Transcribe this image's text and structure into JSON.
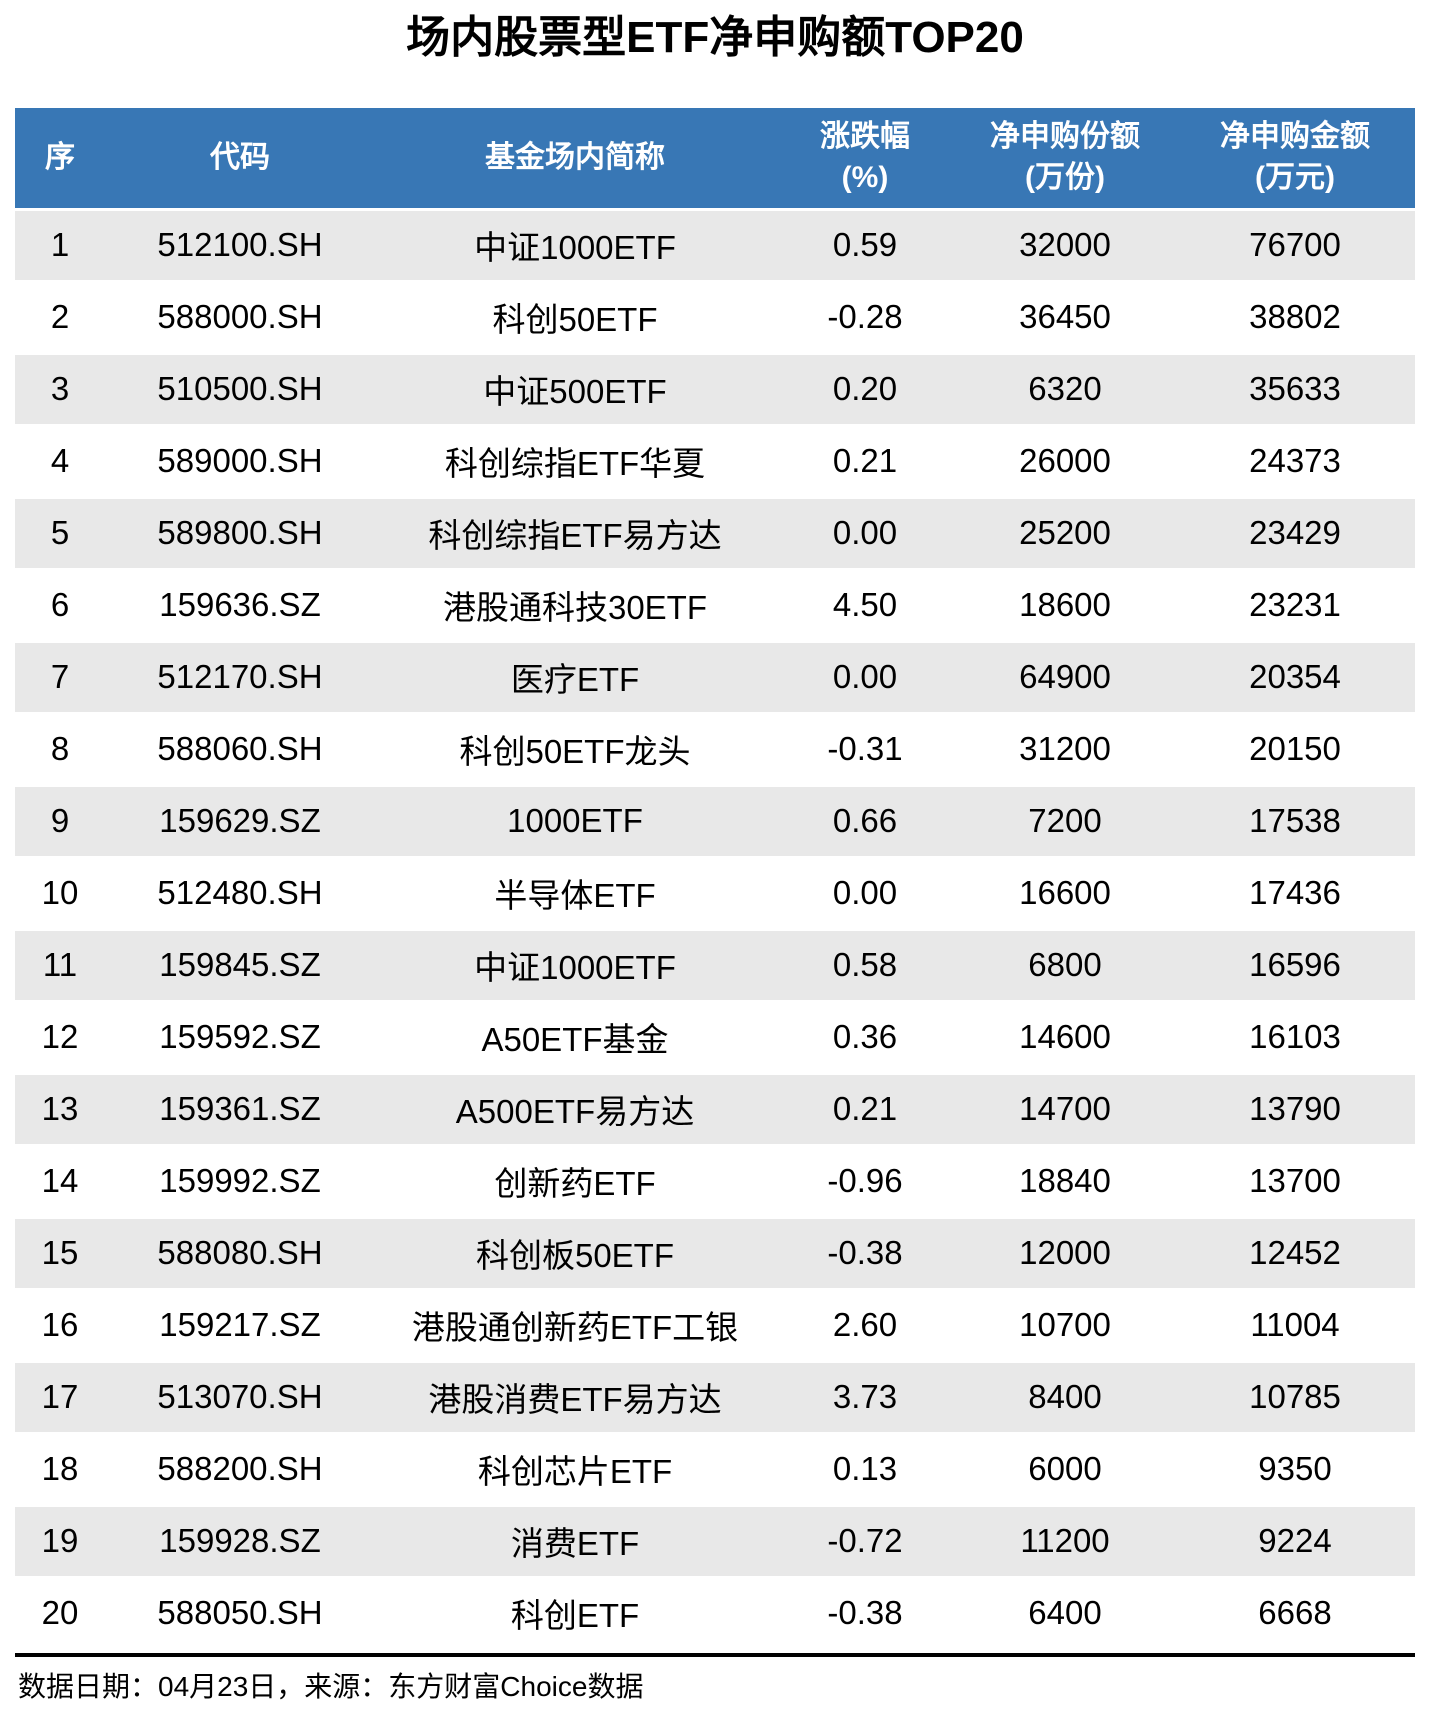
{
  "page": {
    "title": "场内股票型ETF净申购额TOP20",
    "footer_note": "数据日期：04月23日，来源：东方财富Choice数据"
  },
  "colors": {
    "header_background": "#3877B5",
    "header_text": "#FFFFFF",
    "stripe_background": "#E8E8E8",
    "body_text": "#000000",
    "divider": "#000000"
  },
  "chart_data": {
    "type": "table",
    "title": "场内股票型ETF净申购额TOP20",
    "columns": [
      {
        "label": "序",
        "unit": ""
      },
      {
        "label": "代码",
        "unit": ""
      },
      {
        "label": "基金场内简称",
        "unit": ""
      },
      {
        "label": "涨跌幅",
        "unit": "(%)"
      },
      {
        "label": "净申购份额",
        "unit": "(万份)"
      },
      {
        "label": "净申购金额",
        "unit": "(万元)"
      }
    ],
    "rows": [
      [
        "1",
        "512100.SH",
        "中证1000ETF",
        "0.59",
        "32000",
        "76700"
      ],
      [
        "2",
        "588000.SH",
        "科创50ETF",
        "-0.28",
        "36450",
        "38802"
      ],
      [
        "3",
        "510500.SH",
        "中证500ETF",
        "0.20",
        "6320",
        "35633"
      ],
      [
        "4",
        "589000.SH",
        "科创综指ETF华夏",
        "0.21",
        "26000",
        "24373"
      ],
      [
        "5",
        "589800.SH",
        "科创综指ETF易方达",
        "0.00",
        "25200",
        "23429"
      ],
      [
        "6",
        "159636.SZ",
        "港股通科技30ETF",
        "4.50",
        "18600",
        "23231"
      ],
      [
        "7",
        "512170.SH",
        "医疗ETF",
        "0.00",
        "64900",
        "20354"
      ],
      [
        "8",
        "588060.SH",
        "科创50ETF龙头",
        "-0.31",
        "31200",
        "20150"
      ],
      [
        "9",
        "159629.SZ",
        "1000ETF",
        "0.66",
        "7200",
        "17538"
      ],
      [
        "10",
        "512480.SH",
        "半导体ETF",
        "0.00",
        "16600",
        "17436"
      ],
      [
        "11",
        "159845.SZ",
        "中证1000ETF",
        "0.58",
        "6800",
        "16596"
      ],
      [
        "12",
        "159592.SZ",
        "A50ETF基金",
        "0.36",
        "14600",
        "16103"
      ],
      [
        "13",
        "159361.SZ",
        "A500ETF易方达",
        "0.21",
        "14700",
        "13790"
      ],
      [
        "14",
        "159992.SZ",
        "创新药ETF",
        "-0.96",
        "18840",
        "13700"
      ],
      [
        "15",
        "588080.SH",
        "科创板50ETF",
        "-0.38",
        "12000",
        "12452"
      ],
      [
        "16",
        "159217.SZ",
        "港股通创新药ETF工银",
        "2.60",
        "10700",
        "11004"
      ],
      [
        "17",
        "513070.SH",
        "港股消费ETF易方达",
        "3.73",
        "8400",
        "10785"
      ],
      [
        "18",
        "588200.SH",
        "科创芯片ETF",
        "0.13",
        "6000",
        "9350"
      ],
      [
        "19",
        "159928.SZ",
        "消费ETF",
        "-0.72",
        "11200",
        "9224"
      ],
      [
        "20",
        "588050.SH",
        "科创ETF",
        "-0.38",
        "6400",
        "6668"
      ]
    ],
    "footnote": "数据日期：04月23日，来源：东方财富Choice数据",
    "layout": {
      "striped_rows": "odd",
      "header_lines": 2,
      "legend": "none",
      "grid": "off",
      "column_alignment": "center"
    }
  }
}
